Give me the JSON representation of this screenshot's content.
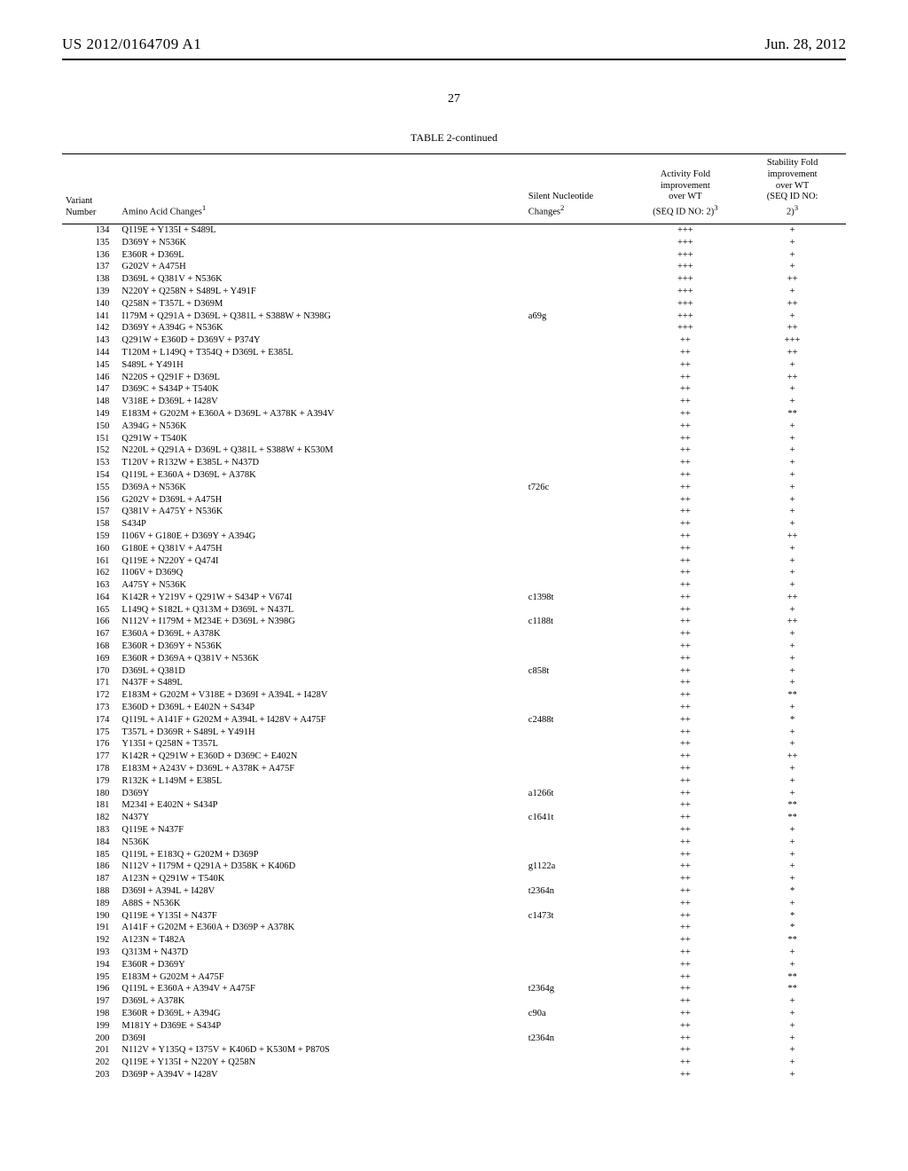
{
  "header": {
    "pub_number": "US 2012/0164709 A1",
    "pub_date": "Jun. 28, 2012"
  },
  "page_number": "27",
  "table": {
    "caption": "TABLE 2-continued",
    "columns": {
      "variant_number": "Variant\nNumber",
      "amino_acid_changes": "Amino Acid Changes¹",
      "silent_changes": "Silent Nucleotide\nChanges²",
      "activity": "Activity Fold\nimprovement\nover WT\n(SEQ ID NO: 2)³",
      "stability": "Stability Fold\nimprovement\nover WT\n(SEQ ID NO:\n2)³"
    },
    "rows": [
      {
        "n": "134",
        "aa": "Q119E + Y135I + S489L",
        "sn": "",
        "act": "+++",
        "stab": "+"
      },
      {
        "n": "135",
        "aa": "D369Y + N536K",
        "sn": "",
        "act": "+++",
        "stab": "+"
      },
      {
        "n": "136",
        "aa": "E360R + D369L",
        "sn": "",
        "act": "+++",
        "stab": "+"
      },
      {
        "n": "137",
        "aa": "G202V + A475H",
        "sn": "",
        "act": "+++",
        "stab": "+"
      },
      {
        "n": "138",
        "aa": "D369L + Q381V + N536K",
        "sn": "",
        "act": "+++",
        "stab": "++"
      },
      {
        "n": "139",
        "aa": "N220Y + Q258N + S489L + Y491F",
        "sn": "",
        "act": "+++",
        "stab": "+"
      },
      {
        "n": "140",
        "aa": "Q258N + T357L + D369M",
        "sn": "",
        "act": "+++",
        "stab": "++"
      },
      {
        "n": "141",
        "aa": "I179M + Q291A + D369L + Q381L + S388W + N398G",
        "sn": "a69g",
        "act": "+++",
        "stab": "+"
      },
      {
        "n": "142",
        "aa": "D369Y + A394G + N536K",
        "sn": "",
        "act": "+++",
        "stab": "++"
      },
      {
        "n": "143",
        "aa": "Q291W + E360D + D369V + P374Y",
        "sn": "",
        "act": "++",
        "stab": "+++"
      },
      {
        "n": "144",
        "aa": "T120M + L149Q + T354Q + D369L + E385L",
        "sn": "",
        "act": "++",
        "stab": "++"
      },
      {
        "n": "145",
        "aa": "S489L + Y491H",
        "sn": "",
        "act": "++",
        "stab": "+"
      },
      {
        "n": "146",
        "aa": "N220S + Q291F + D369L",
        "sn": "",
        "act": "++",
        "stab": "++"
      },
      {
        "n": "147",
        "aa": "D369C + S434P + T540K",
        "sn": "",
        "act": "++",
        "stab": "+"
      },
      {
        "n": "148",
        "aa": "V318E + D369L + I428V",
        "sn": "",
        "act": "++",
        "stab": "+"
      },
      {
        "n": "149",
        "aa": "E183M + G202M + E360A + D369L + A378K + A394V",
        "sn": "",
        "act": "++",
        "stab": "**"
      },
      {
        "n": "150",
        "aa": "A394G + N536K",
        "sn": "",
        "act": "++",
        "stab": "+"
      },
      {
        "n": "151",
        "aa": "Q291W + T540K",
        "sn": "",
        "act": "++",
        "stab": "+"
      },
      {
        "n": "152",
        "aa": "N220L + Q291A + D369L + Q381L + S388W + K530M",
        "sn": "",
        "act": "++",
        "stab": "+"
      },
      {
        "n": "153",
        "aa": "T120V + R132W + E385L + N437D",
        "sn": "",
        "act": "++",
        "stab": "+"
      },
      {
        "n": "154",
        "aa": "Q119L + E360A + D369L + A378K",
        "sn": "",
        "act": "++",
        "stab": "+"
      },
      {
        "n": "155",
        "aa": "D369A + N536K",
        "sn": "t726c",
        "act": "++",
        "stab": "+"
      },
      {
        "n": "156",
        "aa": "G202V + D369L + A475H",
        "sn": "",
        "act": "++",
        "stab": "+"
      },
      {
        "n": "157",
        "aa": "Q381V + A475Y + N536K",
        "sn": "",
        "act": "++",
        "stab": "+"
      },
      {
        "n": "158",
        "aa": "S434P",
        "sn": "",
        "act": "++",
        "stab": "+"
      },
      {
        "n": "159",
        "aa": "I106V + G180E + D369Y + A394G",
        "sn": "",
        "act": "++",
        "stab": "++"
      },
      {
        "n": "160",
        "aa": "G180E + Q381V + A475H",
        "sn": "",
        "act": "++",
        "stab": "+"
      },
      {
        "n": "161",
        "aa": "Q119E + N220Y + Q474I",
        "sn": "",
        "act": "++",
        "stab": "+"
      },
      {
        "n": "162",
        "aa": "I106V + D369Q",
        "sn": "",
        "act": "++",
        "stab": "+"
      },
      {
        "n": "163",
        "aa": "A475Y + N536K",
        "sn": "",
        "act": "++",
        "stab": "+"
      },
      {
        "n": "164",
        "aa": "K142R + Y219V + Q291W + S434P + V674I",
        "sn": "c1398t",
        "act": "++",
        "stab": "++"
      },
      {
        "n": "165",
        "aa": "L149Q + S182L + Q313M + D369L + N437L",
        "sn": "",
        "act": "++",
        "stab": "+"
      },
      {
        "n": "166",
        "aa": "N112V + I179M + M234E + D369L + N398G",
        "sn": "c1188t",
        "act": "++",
        "stab": "++"
      },
      {
        "n": "167",
        "aa": "E360A + D369L + A378K",
        "sn": "",
        "act": "++",
        "stab": "+"
      },
      {
        "n": "168",
        "aa": "E360R + D369Y + N536K",
        "sn": "",
        "act": "++",
        "stab": "+"
      },
      {
        "n": "169",
        "aa": "E360R + D369A + Q381V + N536K",
        "sn": "",
        "act": "++",
        "stab": "+"
      },
      {
        "n": "170",
        "aa": "D369L + Q381D",
        "sn": "c858t",
        "act": "++",
        "stab": "+"
      },
      {
        "n": "171",
        "aa": "N437F + S489L",
        "sn": "",
        "act": "++",
        "stab": "+"
      },
      {
        "n": "172",
        "aa": "E183M + G202M + V318E + D369I + A394L + I428V",
        "sn": "",
        "act": "++",
        "stab": "**"
      },
      {
        "n": "173",
        "aa": "E360D + D369L + E402N + S434P",
        "sn": "",
        "act": "++",
        "stab": "+"
      },
      {
        "n": "174",
        "aa": "Q119L + A141F + G202M + A394L + I428V + A475F",
        "sn": "c2488t",
        "act": "++",
        "stab": "*"
      },
      {
        "n": "175",
        "aa": "T357L + D369R + S489L + Y491H",
        "sn": "",
        "act": "++",
        "stab": "+"
      },
      {
        "n": "176",
        "aa": "Y135I + Q258N + T357L",
        "sn": "",
        "act": "++",
        "stab": "+"
      },
      {
        "n": "177",
        "aa": "K142R + Q291W + E360D + D369C + E402N",
        "sn": "",
        "act": "++",
        "stab": "++"
      },
      {
        "n": "178",
        "aa": "E183M + A243V + D369L + A378K + A475F",
        "sn": "",
        "act": "++",
        "stab": "+"
      },
      {
        "n": "179",
        "aa": "R132K + L149M + E385L",
        "sn": "",
        "act": "++",
        "stab": "+"
      },
      {
        "n": "180",
        "aa": "D369Y",
        "sn": "a1266t",
        "act": "++",
        "stab": "+"
      },
      {
        "n": "181",
        "aa": "M234I + E402N + S434P",
        "sn": "",
        "act": "++",
        "stab": "**"
      },
      {
        "n": "182",
        "aa": "N437Y",
        "sn": "c1641t",
        "act": "++",
        "stab": "**"
      },
      {
        "n": "183",
        "aa": "Q119E + N437F",
        "sn": "",
        "act": "++",
        "stab": "+"
      },
      {
        "n": "184",
        "aa": "N536K",
        "sn": "",
        "act": "++",
        "stab": "+"
      },
      {
        "n": "185",
        "aa": "Q119L + E183Q + G202M + D369P",
        "sn": "",
        "act": "++",
        "stab": "+"
      },
      {
        "n": "186",
        "aa": "N112V + I179M + Q291A + D358K + K406D",
        "sn": "g1122a",
        "act": "++",
        "stab": "+"
      },
      {
        "n": "187",
        "aa": "A123N + Q291W + T540K",
        "sn": "",
        "act": "++",
        "stab": "+"
      },
      {
        "n": "188",
        "aa": "D369I + A394L + I428V",
        "sn": "t2364n",
        "act": "++",
        "stab": "*"
      },
      {
        "n": "189",
        "aa": "A88S + N536K",
        "sn": "",
        "act": "++",
        "stab": "+"
      },
      {
        "n": "190",
        "aa": "Q119E + Y135I + N437F",
        "sn": "c1473t",
        "act": "++",
        "stab": "*"
      },
      {
        "n": "191",
        "aa": "A141F + G202M + E360A + D369P + A378K",
        "sn": "",
        "act": "++",
        "stab": "*"
      },
      {
        "n": "192",
        "aa": "A123N + T482A",
        "sn": "",
        "act": "++",
        "stab": "**"
      },
      {
        "n": "193",
        "aa": "Q313M + N437D",
        "sn": "",
        "act": "++",
        "stab": "+"
      },
      {
        "n": "194",
        "aa": "E360R + D369Y",
        "sn": "",
        "act": "++",
        "stab": "+"
      },
      {
        "n": "195",
        "aa": "E183M + G202M + A475F",
        "sn": "",
        "act": "++",
        "stab": "**"
      },
      {
        "n": "196",
        "aa": "Q119L + E360A + A394V + A475F",
        "sn": "t2364g",
        "act": "++",
        "stab": "**"
      },
      {
        "n": "197",
        "aa": "D369L + A378K",
        "sn": "",
        "act": "++",
        "stab": "+"
      },
      {
        "n": "198",
        "aa": "E360R + D369L + A394G",
        "sn": "c90a",
        "act": "++",
        "stab": "+"
      },
      {
        "n": "199",
        "aa": "M181Y + D369E + S434P",
        "sn": "",
        "act": "++",
        "stab": "+"
      },
      {
        "n": "200",
        "aa": "D369I",
        "sn": "t2364n",
        "act": "++",
        "stab": "+"
      },
      {
        "n": "201",
        "aa": "N112V + Y135Q + I375V + K406D + K530M + P870S",
        "sn": "",
        "act": "++",
        "stab": "+"
      },
      {
        "n": "202",
        "aa": "Q119E + Y135I + N220Y + Q258N",
        "sn": "",
        "act": "++",
        "stab": "+"
      },
      {
        "n": "203",
        "aa": "D369P + A394V + I428V",
        "sn": "",
        "act": "++",
        "stab": "+"
      }
    ]
  }
}
